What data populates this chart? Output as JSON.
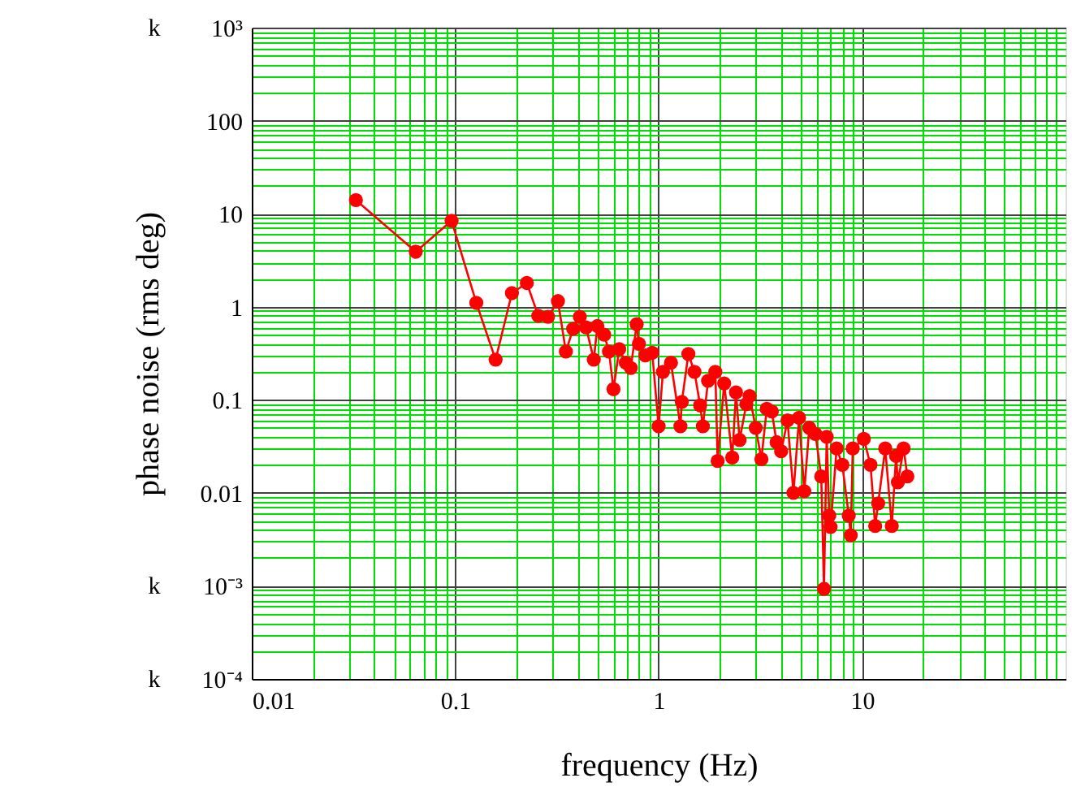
{
  "chart_data": {
    "type": "line",
    "xlabel": "frequency (Hz)",
    "ylabel": "phase noise (rms deg)",
    "log": "xy",
    "grid": true,
    "marker": "circle",
    "line_style": "solid",
    "xlim": [
      0.01,
      100
    ],
    "xticks": [
      0.01,
      {
        "value": 0.02,
        "label": null
      },
      {
        "value": 0.03,
        "label": null
      },
      {
        "value": 0.04,
        "label": null
      },
      {
        "value": 0.05,
        "label": null
      },
      {
        "value": 0.06,
        "label": null
      },
      {
        "value": 0.07,
        "label": null
      },
      {
        "value": 0.08,
        "label": null
      },
      {
        "value": 0.09,
        "label": null
      },
      0.1,
      {
        "value": 0.2,
        "label": null
      },
      {
        "value": 0.3,
        "label": null
      },
      {
        "value": 0.4,
        "label": null
      },
      {
        "value": 0.5,
        "label": null
      },
      {
        "value": 0.6,
        "label": null
      },
      {
        "value": 0.7,
        "label": null
      },
      {
        "value": 0.8,
        "label": null
      },
      {
        "value": 0.9,
        "label": null
      },
      1,
      {
        "value": 2,
        "label": null
      },
      {
        "value": 3,
        "label": null
      },
      {
        "value": 4,
        "label": null
      },
      {
        "value": 5,
        "label": null
      },
      {
        "value": 6,
        "label": null
      },
      {
        "value": 7,
        "label": null
      },
      {
        "value": 8,
        "label": null
      },
      {
        "value": 9,
        "label": null
      },
      10,
      {
        "value": 20,
        "label": null
      },
      {
        "value": 30,
        "label": null
      },
      {
        "value": 40,
        "label": null
      },
      {
        "value": 50,
        "label": null
      },
      {
        "value": 60,
        "label": null
      },
      {
        "value": 70,
        "label": null
      },
      {
        "value": 80,
        "label": null
      },
      {
        "value": 90,
        "label": null
      }
    ],
    "ylim": [
      0.0001,
      1000
    ],
    "yticks": [
      {
        "value": 1000,
        "label": "10³"
      },
      {
        "value": 900,
        "label": null
      },
      {
        "value": 800,
        "label": null
      },
      {
        "value": 700,
        "label": null
      },
      {
        "value": 600,
        "label": null
      },
      {
        "value": 500,
        "label": null
      },
      {
        "value": 400,
        "label": null
      },
      {
        "value": 300,
        "label": null
      },
      {
        "value": 200,
        "label": null
      },
      100,
      {
        "value": 90,
        "label": null
      },
      {
        "value": 80,
        "label": null
      },
      {
        "value": 70,
        "label": null
      },
      {
        "value": 60,
        "label": null
      },
      {
        "value": 50,
        "label": null
      },
      {
        "value": 40,
        "label": null
      },
      {
        "value": 30,
        "label": null
      },
      {
        "value": 20,
        "label": null
      },
      10,
      {
        "value": 9,
        "label": null
      },
      {
        "value": 8,
        "label": null
      },
      {
        "value": 7,
        "label": null
      },
      {
        "value": 6,
        "label": null
      },
      {
        "value": 5,
        "label": null
      },
      {
        "value": 4,
        "label": null
      },
      {
        "value": 3,
        "label": null
      },
      {
        "value": 2,
        "label": null
      },
      1,
      {
        "value": 0.9,
        "label": null
      },
      {
        "value": 0.8,
        "label": null
      },
      {
        "value": 0.7,
        "label": null
      },
      {
        "value": 0.6,
        "label": null
      },
      {
        "value": 0.5,
        "label": null
      },
      {
        "value": 0.4,
        "label": null
      },
      {
        "value": 0.3,
        "label": null
      },
      {
        "value": 0.2,
        "label": null
      },
      0.1,
      {
        "value": 0.09,
        "label": null
      },
      {
        "value": 0.08,
        "label": null
      },
      {
        "value": 0.07,
        "label": null
      },
      {
        "value": 0.06,
        "label": null
      },
      {
        "value": 0.05,
        "label": null
      },
      {
        "value": 0.04,
        "label": null
      },
      {
        "value": 0.03,
        "label": null
      },
      {
        "value": 0.02,
        "label": null
      },
      0.01,
      {
        "value": 0.009,
        "label": null
      },
      {
        "value": 0.008,
        "label": null
      },
      {
        "value": 0.007,
        "label": null
      },
      {
        "value": 0.006,
        "label": null
      },
      {
        "value": 0.005,
        "label": null
      },
      {
        "value": 0.004,
        "label": null
      },
      {
        "value": 0.003,
        "label": null
      },
      {
        "value": 0.002,
        "label": null
      },
      {
        "value": 0.001,
        "label": "10⁻³"
      },
      {
        "value": 0.0009,
        "label": null
      },
      {
        "value": 0.0008,
        "label": null
      },
      {
        "value": 0.0007,
        "label": null
      },
      {
        "value": 0.0006,
        "label": null
      },
      {
        "value": 0.0005,
        "label": null
      },
      {
        "value": 0.0004,
        "label": null
      },
      {
        "value": 0.0003,
        "label": null
      },
      {
        "value": 0.0002,
        "label": null
      },
      {
        "value": 0.0001,
        "label": "10⁻⁴"
      }
    ],
    "annotations": [
      "k",
      "k",
      "k"
    ],
    "x": [
      0.0325,
      0.064,
      0.096,
      0.127,
      0.158,
      0.19,
      0.225,
      0.256,
      0.286,
      0.32,
      0.35,
      0.38,
      0.41,
      0.44,
      0.48,
      0.5,
      0.54,
      0.57,
      0.6,
      0.64,
      0.69,
      0.73,
      0.78,
      0.8,
      0.86,
      0.93,
      1.0,
      1.05,
      1.15,
      1.28,
      1.3,
      1.4,
      1.5,
      1.6,
      1.65,
      1.75,
      1.9,
      1.95,
      2.1,
      2.3,
      2.4,
      2.5,
      2.7,
      2.8,
      3.0,
      3.2,
      3.4,
      3.6,
      3.8,
      4.0,
      4.3,
      4.6,
      4.9,
      5.2,
      5.5,
      5.9,
      6.3,
      6.5,
      6.7,
      6.9,
      7.0,
      7.5,
      8.0,
      8.6,
      8.8,
      9.0,
      10.2,
      11,
      11.6,
      12,
      13,
      14,
      14.7,
      15,
      16,
      16.7
    ],
    "series": [
      {
        "color": "#ff0000",
        "values": [
          14,
          3.9,
          8.4,
          1.1,
          0.27,
          1.4,
          1.8,
          0.8,
          0.78,
          1.15,
          0.33,
          0.58,
          0.78,
          0.6,
          0.27,
          0.62,
          0.5,
          0.33,
          0.13,
          0.35,
          0.25,
          0.22,
          0.65,
          0.4,
          0.3,
          0.32,
          0.052,
          0.2,
          0.25,
          0.052,
          0.095,
          0.31,
          0.2,
          0.087,
          0.052,
          0.16,
          0.2,
          0.022,
          0.15,
          0.024,
          0.12,
          0.037,
          0.09,
          0.11,
          0.05,
          0.023,
          0.08,
          0.075,
          0.035,
          0.028,
          0.06,
          0.01,
          0.064,
          0.0104,
          0.05,
          0.043,
          0.015,
          0.00093,
          0.04,
          0.0057,
          0.0043,
          0.03,
          0.02,
          0.0057,
          0.0035,
          0.03,
          0.038,
          0.02,
          0.0044,
          0.0077,
          0.03,
          0.0044,
          0.025,
          0.013,
          0.03,
          0.015
        ]
      }
    ]
  }
}
